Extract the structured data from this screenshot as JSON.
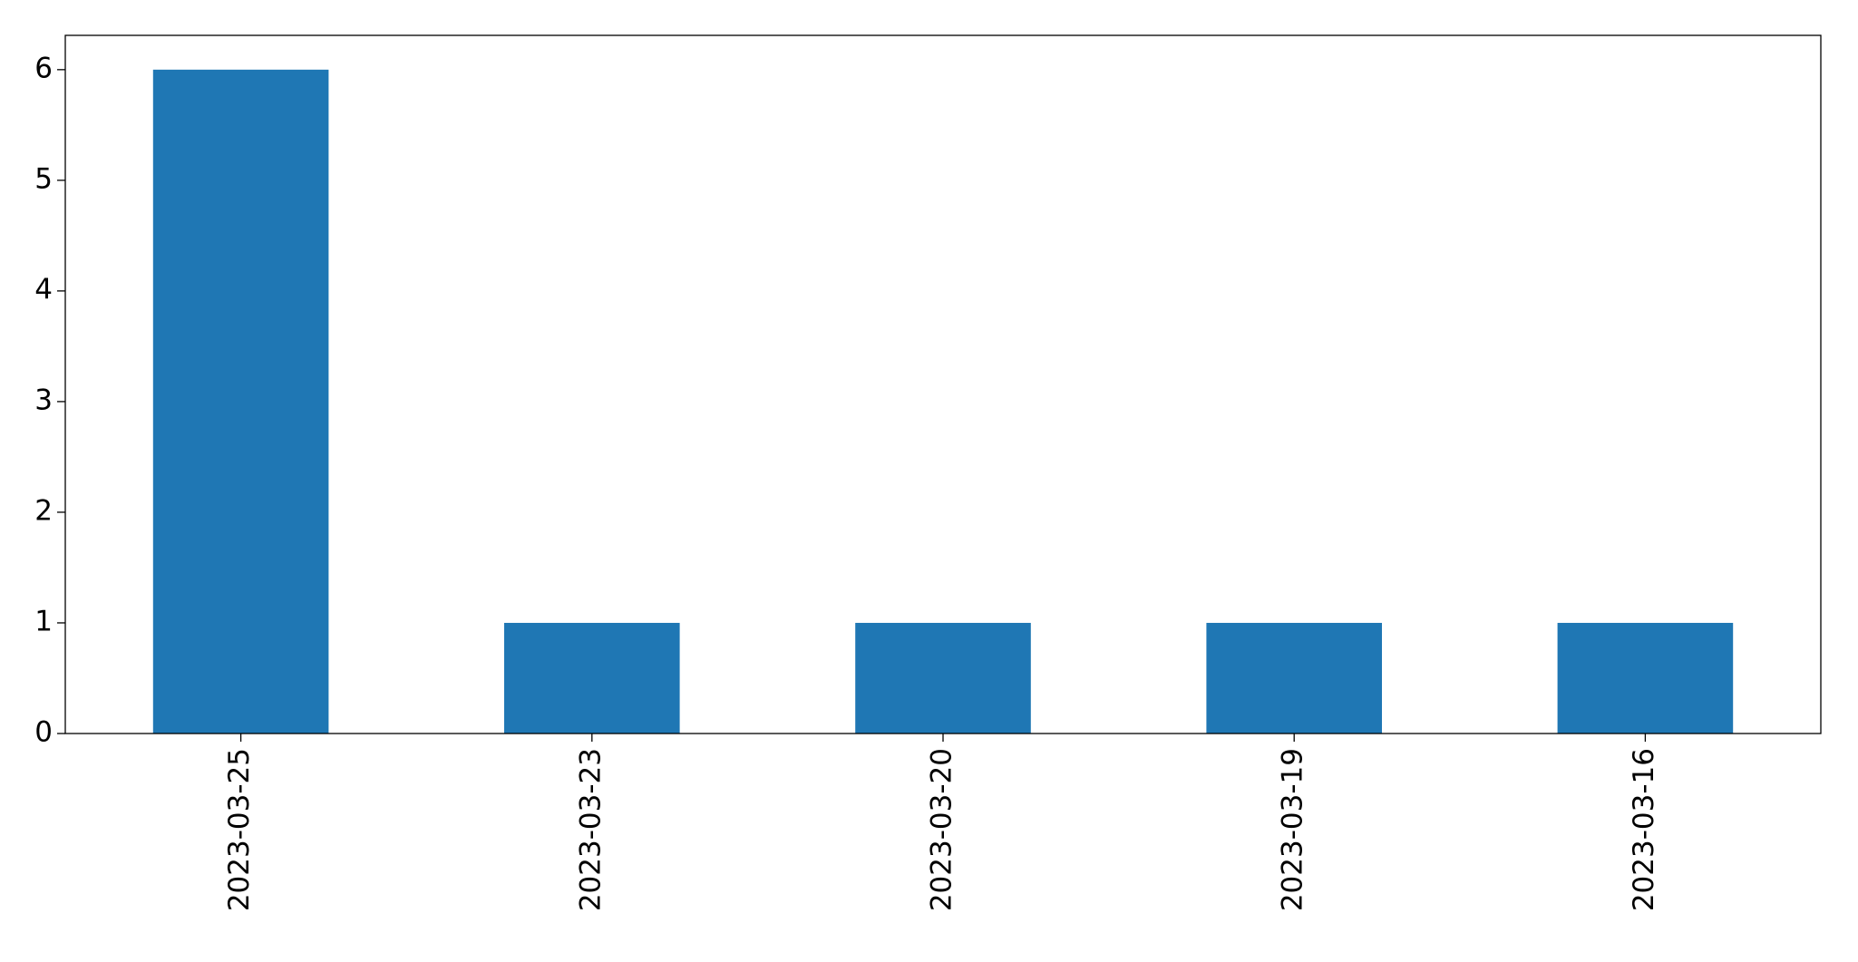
{
  "chart_data": {
    "type": "bar",
    "categories": [
      "2023-03-25",
      "2023-03-23",
      "2023-03-20",
      "2023-03-19",
      "2023-03-16"
    ],
    "values": [
      6,
      1,
      1,
      1,
      1
    ],
    "color": "#1f77b4",
    "ylim": [
      0,
      6.31
    ],
    "yticks": [
      0,
      1,
      2,
      3,
      4,
      5,
      6
    ],
    "grid": false
  }
}
